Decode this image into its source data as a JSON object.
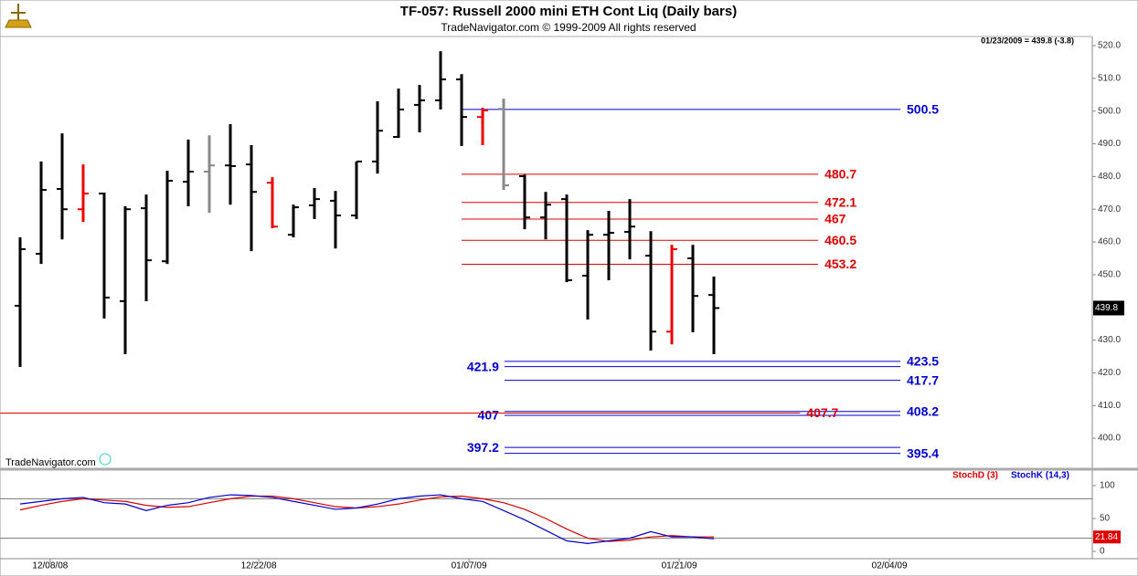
{
  "header": {
    "title": "TF-057:  Russell 2000 mini ETH Cont Liq  (Daily bars)",
    "subtitle": "TradeNavigator.com © 1999-2009 All rights reserved",
    "watermark": "TradeNavigator.com"
  },
  "chart_data": [
    {
      "type": "ohlc",
      "info": "01/23/2009 = 439.8 (-3.8)",
      "last_value": 439.8,
      "open": [
        440.5,
        456.4,
        476.2,
        470.0,
        474.8,
        441.9,
        470.3,
        454.1,
        478.4,
        481.5,
        483.4,
        483.7,
        478.1,
        462.2,
        471.2,
        472.6,
        468.1,
        484.6,
        492.1,
        501.9,
        503.3,
        509.7,
        498.2,
        500.7,
        480.1,
        467.5,
        473.1,
        449.7,
        462.2,
        463.1,
        455.8,
        432.6,
        455.0,
        443.8
      ],
      "high": [
        461.4,
        484.6,
        493.2,
        483.7,
        475.1,
        470.9,
        474.5,
        481.8,
        491.3,
        492.6,
        496.0,
        489.6,
        479.8,
        471.4,
        476.5,
        475.6,
        484.6,
        503.0,
        506.9,
        508.0,
        518.3,
        511.3,
        501.0,
        503.8,
        480.6,
        475.3,
        474.5,
        463.6,
        469.5,
        473.1,
        463.3,
        459.1,
        459.1,
        449.4
      ],
      "low": [
        421.8,
        453.3,
        460.8,
        466.1,
        436.6,
        425.7,
        441.9,
        453.3,
        470.9,
        468.9,
        471.4,
        457.2,
        464.2,
        461.4,
        467.0,
        458.0,
        467.0,
        480.9,
        491.8,
        493.5,
        500.5,
        489.3,
        489.6,
        475.9,
        463.9,
        460.8,
        447.7,
        436.3,
        448.3,
        454.7,
        426.8,
        428.7,
        432.4,
        425.7
      ],
      "close": [
        457.8,
        475.9,
        470.0,
        474.8,
        443.0,
        470.0,
        454.4,
        478.7,
        481.5,
        483.4,
        483.2,
        475.3,
        464.7,
        470.6,
        473.1,
        468.1,
        484.6,
        494.0,
        500.5,
        503.3,
        509.7,
        498.2,
        500.2,
        477.3,
        467.5,
        471.4,
        448.3,
        462.2,
        462.8,
        464.7,
        432.6,
        457.8,
        443.5,
        439.8
      ],
      "bar_colors": [
        "#000000",
        "#000000",
        "#000000",
        "#ee0000",
        "#000000",
        "#000000",
        "#000000",
        "#000000",
        "#000000",
        "#888888",
        "#000000",
        "#000000",
        "#ee0000",
        "#000000",
        "#000000",
        "#000000",
        "#000000",
        "#000000",
        "#000000",
        "#000000",
        "#000000",
        "#000000",
        "#ee0000",
        "#888888",
        "#000000",
        "#000000",
        "#000000",
        "#000000",
        "#000000",
        "#000000",
        "#000000",
        "#ee0000",
        "#000000",
        "#000000"
      ],
      "ylim": [
        391.1,
        522.8
      ],
      "yticks": [
        {
          "value": 400,
          "label": "400.0"
        },
        {
          "value": 410,
          "label": "410.0"
        },
        {
          "value": 420,
          "label": "420.0"
        },
        {
          "value": 430,
          "label": "430.0"
        },
        {
          "value": 440,
          "label": "440.0"
        },
        {
          "value": 450,
          "label": "450.0"
        },
        {
          "value": 460,
          "label": "460.0"
        },
        {
          "value": 470,
          "label": "470.0"
        },
        {
          "value": 480,
          "label": "480.0"
        },
        {
          "value": 490,
          "label": "490.0"
        },
        {
          "value": 500,
          "label": "500.0"
        },
        {
          "value": 510,
          "label": "510.0"
        },
        {
          "value": 520,
          "label": "520.0"
        }
      ],
      "xticks": [
        {
          "value": 1.43,
          "label": "12/08/08"
        },
        {
          "value": 11.35,
          "label": "12/22/08"
        },
        {
          "value": 21.35,
          "label": "01/07/09"
        },
        {
          "value": 31.35,
          "label": "01/21/09"
        },
        {
          "value": 41.35,
          "label": "02/04/09"
        }
      ],
      "levels": [
        {
          "value": 500.5,
          "color": "#0000cc",
          "start": 21,
          "end": 41.87,
          "side": "right"
        },
        {
          "value": 480.7,
          "color": "#dd0000",
          "start": 21,
          "end": 37.96,
          "side": "right"
        },
        {
          "value": 472.1,
          "color": "#dd0000",
          "start": 21,
          "end": 37.96,
          "side": "right"
        },
        {
          "value": 467.0,
          "color": "#dd0000",
          "start": 21,
          "end": 37.96,
          "side": "right"
        },
        {
          "value": 460.5,
          "color": "#dd0000",
          "start": 21,
          "end": 37.96,
          "side": "right"
        },
        {
          "value": 453.2,
          "color": "#dd0000",
          "start": 21,
          "end": 37.96,
          "side": "right"
        },
        {
          "value": 423.5,
          "color": "#0000cc",
          "start": 23.04,
          "end": 41.87,
          "side": "right"
        },
        {
          "value": 421.9,
          "color": "#0000cc",
          "start": 23.04,
          "end": 41.87,
          "side": "left"
        },
        {
          "value": 417.7,
          "color": "#0000cc",
          "start": 23.04,
          "end": 41.87,
          "side": "right"
        },
        {
          "value": 408.2,
          "color": "#0000cc",
          "start": 23.04,
          "end": 41.87,
          "side": "right"
        },
        {
          "value": 407.0,
          "color": "#0000cc",
          "start": 23.04,
          "end": 41.87,
          "side": "left"
        },
        {
          "value": 407.7,
          "color": "#dd0000",
          "start": -0.96,
          "end": 37.1,
          "side": "right"
        },
        {
          "value": 397.2,
          "color": "#0000cc",
          "start": 23.04,
          "end": 41.87,
          "side": "left"
        },
        {
          "value": 395.4,
          "color": "#0000cc",
          "start": 23.04,
          "end": 41.87,
          "side": "right"
        }
      ]
    },
    {
      "type": "line",
      "last_value": 21.84,
      "series": [
        {
          "name": "StochD (3)",
          "color": "#dd0000",
          "values": [
            63,
            70,
            76,
            80,
            78,
            76,
            70,
            67,
            68,
            74,
            80,
            84,
            84,
            80,
            74,
            68,
            66,
            68,
            72,
            78,
            83,
            84,
            80,
            74,
            64,
            50,
            34,
            20,
            15,
            17,
            22,
            24,
            22,
            21.84
          ]
        },
        {
          "name": "StochK (14,3)",
          "color": "#0000cc",
          "values": [
            72,
            76,
            80,
            82,
            74,
            72,
            62,
            70,
            74,
            82,
            86,
            85,
            82,
            76,
            70,
            64,
            66,
            72,
            80,
            84,
            86,
            80,
            76,
            62,
            48,
            32,
            16,
            12,
            16,
            20,
            30,
            22,
            22,
            19
          ]
        }
      ],
      "ylim": [
        -11.1,
        122.2
      ],
      "yticks": [
        0,
        50,
        100
      ],
      "reference_lines": [
        20,
        80
      ]
    }
  ]
}
